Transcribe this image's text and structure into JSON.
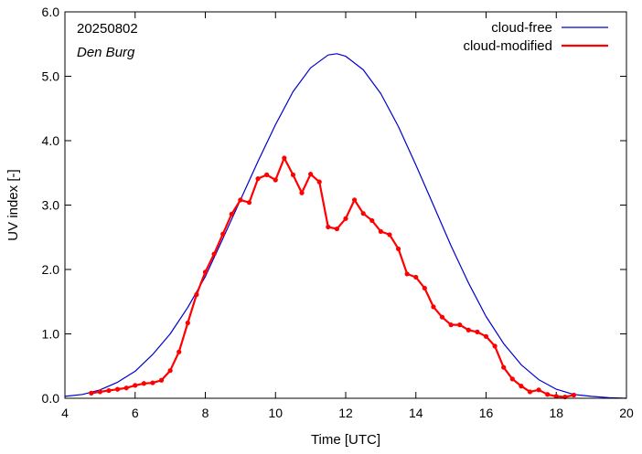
{
  "chart_data": {
    "type": "line",
    "date": "20250802",
    "location": "Den Burg",
    "xlabel": "Time  [UTC]",
    "ylabel": "UV index  [-]",
    "xlim": [
      4,
      20
    ],
    "ylim": [
      0,
      6
    ],
    "x_ticks": [
      4,
      6,
      8,
      10,
      12,
      14,
      16,
      18,
      20
    ],
    "x_tick_labels": [
      "4",
      "6",
      "8",
      "10",
      "12",
      "14",
      "16",
      "18",
      "20"
    ],
    "y_ticks": [
      0,
      1,
      2,
      3,
      4,
      5,
      6
    ],
    "y_tick_labels": [
      "0.0",
      "1.0",
      "2.0",
      "3.0",
      "4.0",
      "5.0",
      "6.0"
    ],
    "grid": false,
    "legend_position": "top-right",
    "series": [
      {
        "name": "cloud-free",
        "color": "#0000cc",
        "markers": false,
        "x": [
          4.0,
          4.5,
          5.0,
          5.5,
          6.0,
          6.5,
          7.0,
          7.5,
          8.0,
          8.5,
          9.0,
          9.5,
          10.0,
          10.5,
          11.0,
          11.5,
          11.75,
          12.0,
          12.5,
          13.0,
          13.5,
          14.0,
          14.5,
          15.0,
          15.5,
          16.0,
          16.5,
          17.0,
          17.5,
          18.0,
          18.5,
          19.0,
          19.5,
          20.0
        ],
        "y": [
          0.03,
          0.06,
          0.13,
          0.25,
          0.42,
          0.68,
          1.0,
          1.41,
          1.89,
          2.48,
          3.08,
          3.68,
          4.25,
          4.76,
          5.13,
          5.33,
          5.35,
          5.31,
          5.1,
          4.73,
          4.22,
          3.62,
          3.0,
          2.37,
          1.79,
          1.27,
          0.85,
          0.52,
          0.29,
          0.14,
          0.06,
          0.03,
          0.01,
          0.0
        ]
      },
      {
        "name": "cloud-modified",
        "color": "#ff0000",
        "markers": true,
        "x": [
          4.75,
          5.0,
          5.25,
          5.5,
          5.75,
          6.0,
          6.25,
          6.5,
          6.75,
          7.0,
          7.25,
          7.5,
          7.75,
          8.0,
          8.25,
          8.5,
          8.75,
          9.0,
          9.25,
          9.5,
          9.75,
          10.0,
          10.25,
          10.5,
          10.75,
          11.0,
          11.25,
          11.5,
          11.75,
          12.0,
          12.25,
          12.5,
          12.75,
          13.0,
          13.25,
          13.5,
          13.75,
          14.0,
          14.25,
          14.5,
          14.75,
          15.0,
          15.25,
          15.5,
          15.75,
          16.0,
          16.25,
          16.5,
          16.75,
          17.0,
          17.25,
          17.5,
          17.75,
          18.0,
          18.25,
          18.5
        ],
        "y": [
          0.08,
          0.1,
          0.12,
          0.14,
          0.16,
          0.2,
          0.23,
          0.24,
          0.28,
          0.43,
          0.72,
          1.17,
          1.61,
          1.96,
          2.24,
          2.55,
          2.86,
          3.08,
          3.04,
          3.41,
          3.47,
          3.39,
          3.73,
          3.47,
          3.19,
          3.48,
          3.36,
          2.66,
          2.63,
          2.79,
          3.08,
          2.87,
          2.76,
          2.59,
          2.54,
          2.32,
          1.93,
          1.88,
          1.71,
          1.42,
          1.26,
          1.14,
          1.14,
          1.06,
          1.03,
          0.96,
          0.81,
          0.48,
          0.3,
          0.19,
          0.1,
          0.13,
          0.06,
          0.03,
          0.02,
          0.05
        ]
      }
    ]
  }
}
